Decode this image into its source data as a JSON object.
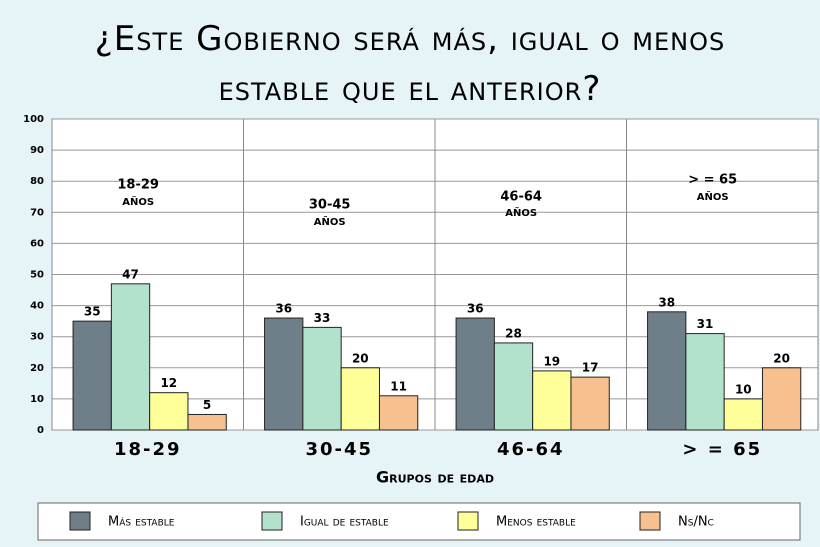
{
  "chart_data": {
    "type": "bar",
    "title": "¿Este Gobierno será más, igual o menos estable que el anterior?",
    "x_label": "Grupos de edad",
    "categories": [
      "18-29",
      "30-45",
      "46-64",
      "> = 65"
    ],
    "annotations": [
      {
        "text": "18-29",
        "sub": "AÑOS"
      },
      {
        "text": "30-45",
        "sub": "AÑOS"
      },
      {
        "text": "46-64",
        "sub": "AÑOS"
      },
      {
        "text": "> = 65",
        "sub": "AÑOS"
      }
    ],
    "series": [
      {
        "name": "Más estable",
        "color": "#6f7f8a",
        "values": [
          35,
          36,
          36,
          38
        ]
      },
      {
        "name": "Igual de estable",
        "color": "#b2e2cc",
        "values": [
          47,
          33,
          28,
          31
        ]
      },
      {
        "name": "Menos estable",
        "color": "#ffff99",
        "values": [
          12,
          20,
          19,
          10
        ]
      },
      {
        "name": "Ns/Nc",
        "color": "#f7c08f",
        "values": [
          5,
          11,
          17,
          20
        ]
      }
    ],
    "ylim": [
      0,
      100
    ],
    "yticks": [
      0,
      10,
      20,
      30,
      40,
      50,
      60,
      70,
      80,
      90,
      100
    ],
    "grid": true
  }
}
